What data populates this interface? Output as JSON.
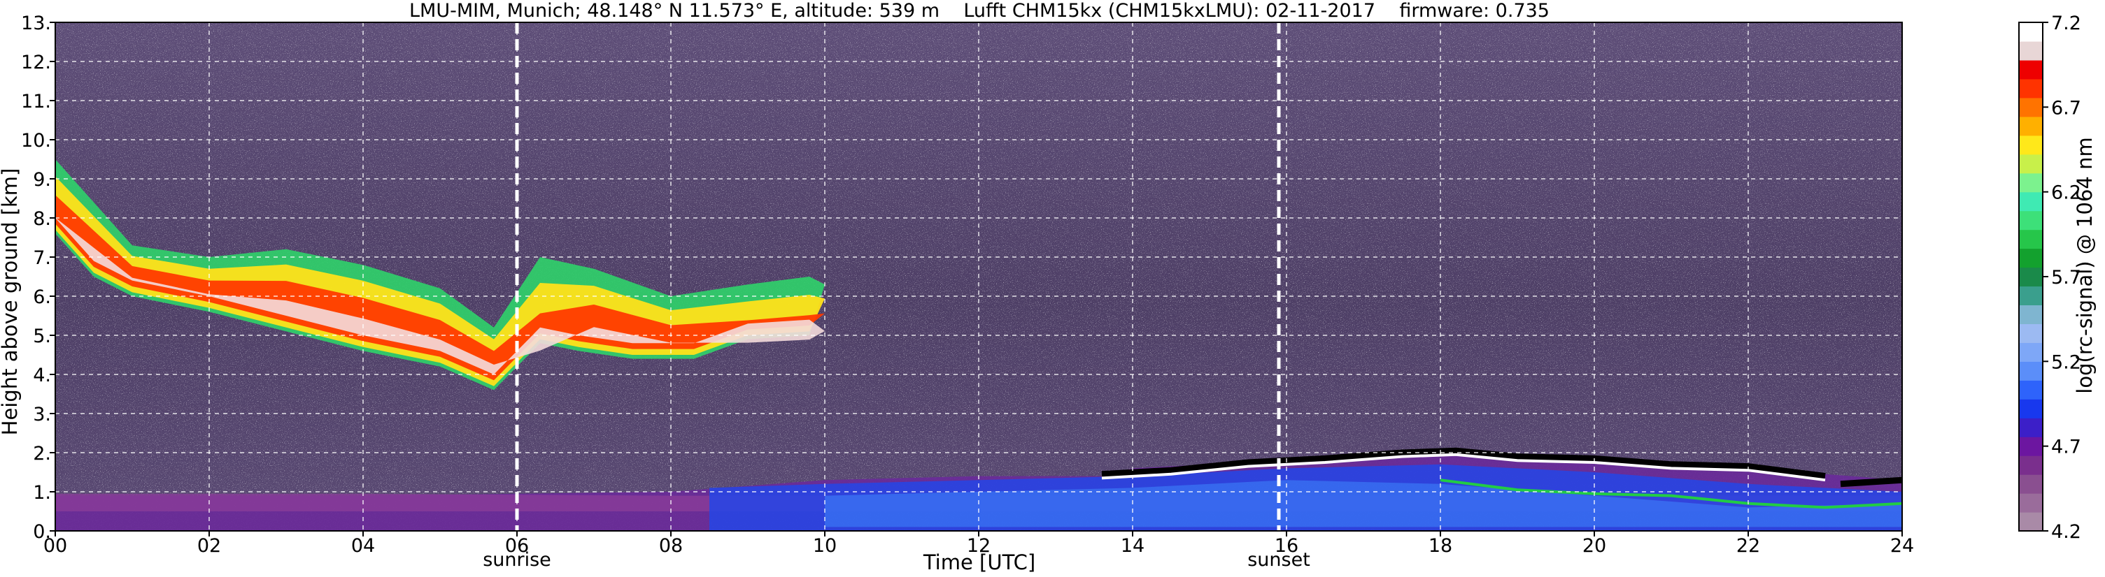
{
  "chart_data": {
    "type": "heatmap",
    "title": "LMU-MIM, Munich; 48.148° N 11.573° E, altitude: 539 m    Lufft CHM15kx (CHM15kxLMU): 02-11-2017    firmware: 0.735",
    "xlabel": "Time [UTC]",
    "ylabel": "Height above ground [km]",
    "xlim": [
      0,
      24
    ],
    "ylim": [
      0,
      13
    ],
    "x_ticks": [
      "00",
      "02",
      "04",
      "06",
      "08",
      "10",
      "12",
      "14",
      "16",
      "18",
      "20",
      "22",
      "24"
    ],
    "y_ticks": [
      "0.",
      "1.",
      "2.",
      "3.",
      "4.",
      "5.",
      "6.",
      "7.",
      "8.",
      "9.",
      "10.",
      "11.",
      "12.",
      "13."
    ],
    "grid": true,
    "colorbar": {
      "label": "log(rc-signal) @ 1064 nm",
      "range": [
        4.2,
        7.2
      ],
      "ticks": [
        "4.2",
        "4.7",
        "5.2",
        "5.7",
        "6.2",
        "6.7",
        "7.2"
      ],
      "colors": [
        "#a98aa7",
        "#9a6c9b",
        "#8a4f90",
        "#7a2f8d",
        "#6c16a0",
        "#3c1fc8",
        "#1838ee",
        "#2e63fb",
        "#5b8ef9",
        "#7ea7f7",
        "#9cbaf2",
        "#7fb5d0",
        "#3a9f8d",
        "#1a8a4a",
        "#13a12e",
        "#26c64a",
        "#3de079",
        "#3feab3",
        "#7cf28e",
        "#c8f04a",
        "#ffe81a",
        "#ffb000",
        "#ff7300",
        "#ff3300",
        "#ee0000",
        "#e8d6d6",
        "#ffffff"
      ]
    },
    "events": [
      {
        "label": "sunrise",
        "time": 6.0
      },
      {
        "label": "sunset",
        "time": 15.9
      }
    ],
    "features": {
      "cirrus_cloud_base": {
        "time": [
          0.0,
          0.5,
          1.0,
          2.0,
          3.0,
          4.0,
          5.0,
          5.7,
          6.3,
          6.8,
          7.5,
          8.3,
          9.0,
          9.8
        ],
        "height_km": [
          7.6,
          6.5,
          6.0,
          5.6,
          5.1,
          4.6,
          4.2,
          3.6,
          4.8,
          4.6,
          4.4,
          4.4,
          4.9,
          5.0
        ]
      },
      "cirrus_cloud_top": {
        "time": [
          0.0,
          1.0,
          2.0,
          3.0,
          4.0,
          5.0,
          5.7,
          6.3,
          7.0,
          8.0,
          9.0,
          9.8,
          10.0
        ],
        "height_km": [
          9.5,
          7.3,
          7.0,
          7.2,
          6.8,
          6.2,
          5.2,
          7.0,
          6.7,
          6.0,
          6.3,
          6.5,
          6.3
        ]
      },
      "boundary_layer_top": {
        "time": [
          0,
          4,
          8,
          10,
          12,
          13.6,
          14,
          16,
          18,
          20,
          22,
          24
        ],
        "height_km": [
          0.9,
          0.9,
          1.0,
          1.3,
          1.4,
          1.4,
          1.6,
          1.8,
          2.1,
          1.8,
          1.6,
          1.3
        ]
      }
    }
  }
}
